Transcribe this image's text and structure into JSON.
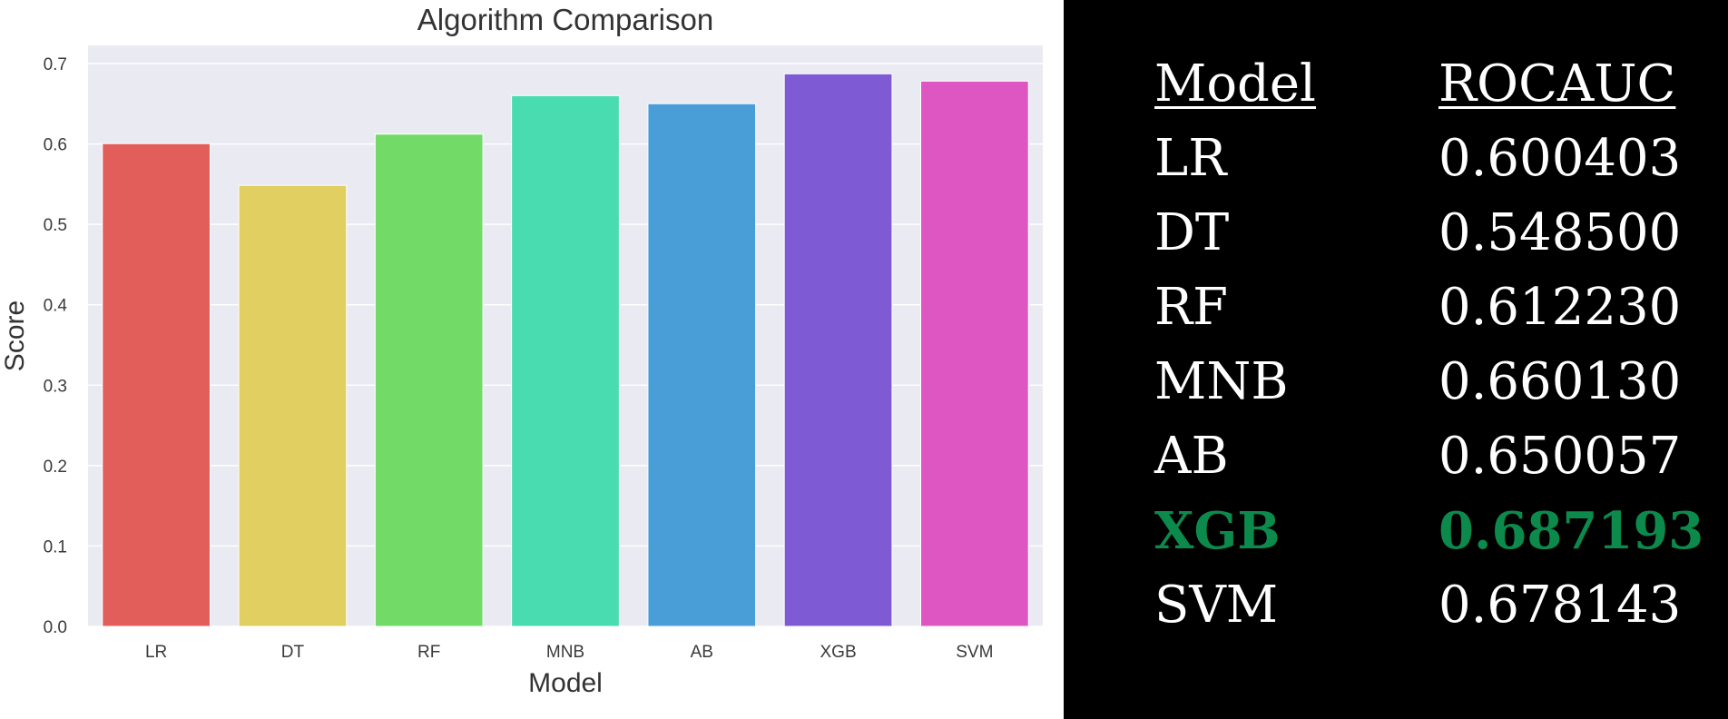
{
  "chart_data": {
    "type": "bar",
    "title": "Algorithm Comparison",
    "xlabel": "Model",
    "ylabel": "Score",
    "categories": [
      "LR",
      "DT",
      "RF",
      "MNB",
      "AB",
      "XGB",
      "SVM"
    ],
    "values": [
      0.600403,
      0.5485,
      0.61223,
      0.66013,
      0.650057,
      0.687193,
      0.678143
    ],
    "colors": [
      "#e15e5a",
      "#e1cf62",
      "#72db68",
      "#48dcb0",
      "#4a9ed8",
      "#7e5bd5",
      "#de56c2"
    ],
    "ylim": [
      0,
      0.7
    ],
    "yticks": [
      "0.0",
      "0.1",
      "0.2",
      "0.3",
      "0.4",
      "0.5",
      "0.6",
      "0.7"
    ],
    "grid": true,
    "background": "#eaeaf2"
  },
  "table": {
    "headers": [
      "Model",
      "ROCAUC"
    ],
    "rows": [
      {
        "model": "LR",
        "score": "0.600403"
      },
      {
        "model": "DT",
        "score": "0.548500"
      },
      {
        "model": "RF",
        "score": "0.612230"
      },
      {
        "model": "MNB",
        "score": "0.660130"
      },
      {
        "model": "AB",
        "score": "0.650057"
      },
      {
        "model": "XGB",
        "score": "0.687193"
      },
      {
        "model": "SVM",
        "score": "0.678143"
      }
    ],
    "highlight_model": "XGB",
    "highlight_color": "#0c8a4c",
    "text_color": "#ffffff",
    "background": "#000000"
  }
}
